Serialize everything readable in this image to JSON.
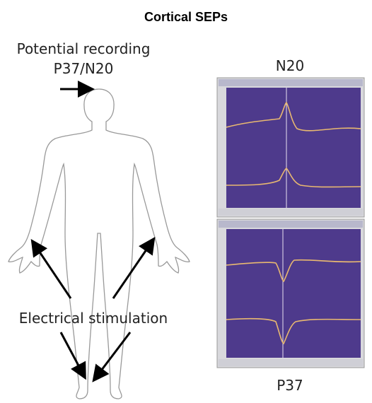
{
  "title": "Cortical SEPs",
  "recording": {
    "label": "Potential recording",
    "site": "P37/N20"
  },
  "stimulation": "Electrical stimulation",
  "panels": [
    {
      "label": "N20"
    },
    {
      "label": "P37"
    }
  ]
}
